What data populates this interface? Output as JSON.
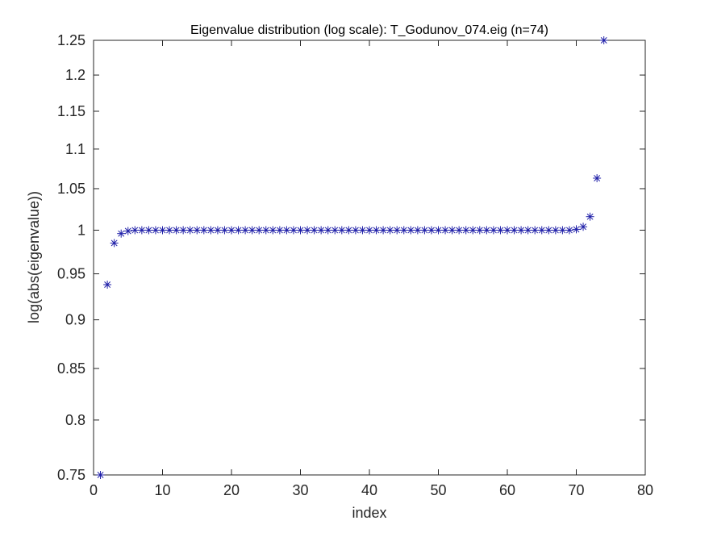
{
  "chart_data": {
    "type": "scatter",
    "title": "Eigenvalue distribution (log scale): T_Godunov_074.eig (n=74)",
    "xlabel": "index",
    "ylabel": "log(abs(eigenvalue))",
    "xlim": [
      0,
      80
    ],
    "ylim": [
      0.75,
      1.25
    ],
    "yscale": "log",
    "xticks": [
      0,
      10,
      20,
      30,
      40,
      50,
      60,
      70,
      80
    ],
    "xtick_labels": [
      "0",
      "10",
      "20",
      "30",
      "40",
      "50",
      "60",
      "70",
      "80"
    ],
    "yticks": [
      0.75,
      0.8,
      0.85,
      0.9,
      0.95,
      1,
      1.05,
      1.1,
      1.15,
      1.2,
      1.25
    ],
    "ytick_labels": [
      "0.75",
      "0.8",
      "0.85",
      "0.9",
      "0.95",
      "1",
      "1.05",
      "1.1",
      "1.15",
      "1.2",
      "1.25"
    ],
    "marker": "asterisk",
    "marker_color": "#1f1fa8",
    "grid": false,
    "series": [
      {
        "x": [
          1,
          2,
          3,
          4,
          5,
          6,
          7,
          8,
          9,
          10,
          11,
          12,
          13,
          14,
          15,
          16,
          17,
          18,
          19,
          20,
          21,
          22,
          23,
          24,
          25,
          26,
          27,
          28,
          29,
          30,
          31,
          32,
          33,
          34,
          35,
          36,
          37,
          38,
          39,
          40,
          41,
          42,
          43,
          44,
          45,
          46,
          47,
          48,
          49,
          50,
          51,
          52,
          53,
          54,
          55,
          56,
          57,
          58,
          59,
          60,
          61,
          62,
          63,
          64,
          65,
          66,
          67,
          68,
          69,
          70,
          71,
          72,
          73,
          74
        ],
        "y": [
          0.75,
          0.938,
          0.985,
          0.996,
          0.999,
          1,
          1,
          1,
          1,
          1,
          1,
          1,
          1,
          1,
          1,
          1,
          1,
          1,
          1,
          1,
          1,
          1,
          1,
          1,
          1,
          1,
          1,
          1,
          1,
          1,
          1,
          1,
          1,
          1,
          1,
          1,
          1,
          1,
          1,
          1,
          1,
          1,
          1,
          1,
          1,
          1,
          1,
          1,
          1,
          1,
          1,
          1,
          1,
          1,
          1,
          1,
          1,
          1,
          1,
          1,
          1,
          1,
          1,
          1,
          1,
          1,
          1,
          1,
          1,
          1.001,
          1.004,
          1.016,
          1.063,
          1.25
        ]
      }
    ]
  }
}
